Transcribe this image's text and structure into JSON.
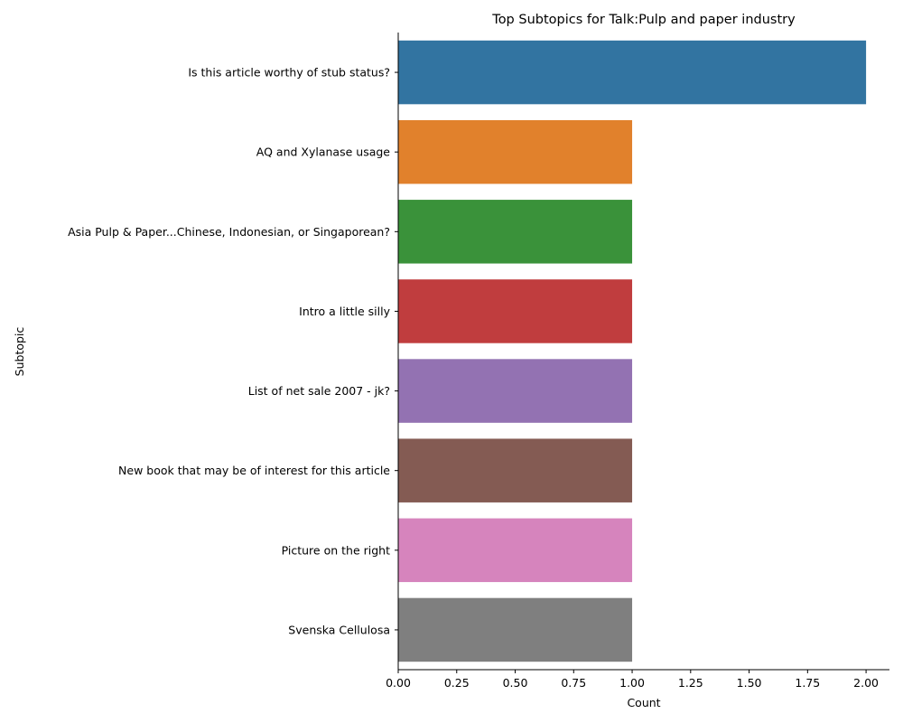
{
  "chart_data": {
    "type": "bar",
    "orientation": "horizontal",
    "title": "Top Subtopics for Talk:Pulp and paper industry",
    "xlabel": "Count",
    "ylabel": "Subtopic",
    "xlim": [
      0,
      2.1
    ],
    "xticks": [
      "0.00",
      "0.25",
      "0.50",
      "0.75",
      "1.00",
      "1.25",
      "1.50",
      "1.75",
      "2.00"
    ],
    "categories": [
      "Is this article worthy of stub status?",
      "AQ and Xylanase usage",
      "Asia Pulp & Paper...Chinese, Indonesian, or Singaporean?",
      "Intro a little silly",
      "List of net sale 2007 - jk?",
      "New book that may be of interest for this article",
      "Picture on the right",
      "Svenska Cellulosa"
    ],
    "values": [
      2,
      1,
      1,
      1,
      1,
      1,
      1,
      1
    ],
    "colors": [
      "#3274a1",
      "#e1812c",
      "#3a923a",
      "#c03d3e",
      "#9372b2",
      "#845b53",
      "#d684bd",
      "#7f7f7f"
    ],
    "grid": false,
    "legend": "none"
  }
}
